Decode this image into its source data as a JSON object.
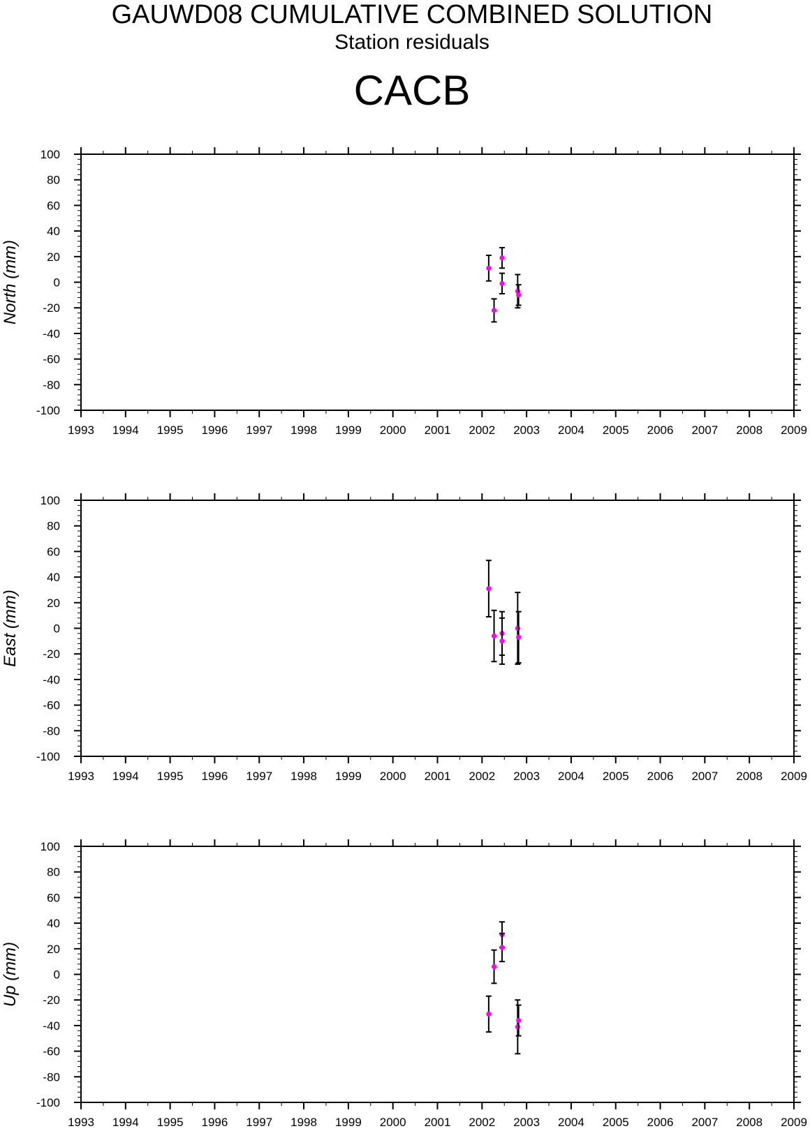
{
  "header": {
    "title": "GAUWD08 CUMULATIVE COMBINED SOLUTION",
    "subtitle": "Station residuals",
    "station": "CACB"
  },
  "colors": {
    "point": "#ff00ff",
    "errorbar": "#000000",
    "axis": "#000000"
  },
  "chart_data": [
    {
      "type": "scatter",
      "ylabel": "North (mm)",
      "xlim": [
        1993,
        2009
      ],
      "ylim": [
        -100,
        100
      ],
      "xticks": [
        1993,
        1994,
        1995,
        1996,
        1997,
        1998,
        1999,
        2000,
        2001,
        2002,
        2003,
        2004,
        2005,
        2006,
        2007,
        2008,
        2009
      ],
      "yticks": [
        100,
        80,
        60,
        40,
        20,
        0,
        -20,
        -40,
        -60,
        -80,
        -100
      ],
      "grid": false,
      "points": [
        {
          "x": 2002.15,
          "y": 11,
          "err": 10
        },
        {
          "x": 2002.27,
          "y": -22,
          "err": 9
        },
        {
          "x": 2002.45,
          "y": 19,
          "err": 8
        },
        {
          "x": 2002.45,
          "y": -1,
          "err": 8
        },
        {
          "x": 2002.8,
          "y": -7,
          "err": 13
        },
        {
          "x": 2002.82,
          "y": -10,
          "err": 8
        }
      ]
    },
    {
      "type": "scatter",
      "ylabel": "East (mm)",
      "xlim": [
        1993,
        2009
      ],
      "ylim": [
        -100,
        100
      ],
      "xticks": [
        1993,
        1994,
        1995,
        1996,
        1997,
        1998,
        1999,
        2000,
        2001,
        2002,
        2003,
        2004,
        2005,
        2006,
        2007,
        2008,
        2009
      ],
      "yticks": [
        100,
        80,
        60,
        40,
        20,
        0,
        -20,
        -40,
        -60,
        -80,
        -100
      ],
      "grid": false,
      "points": [
        {
          "x": 2002.15,
          "y": 31,
          "err": 22
        },
        {
          "x": 2002.27,
          "y": -6,
          "err": 20
        },
        {
          "x": 2002.45,
          "y": -4,
          "err": 17
        },
        {
          "x": 2002.45,
          "y": -10,
          "err": 18
        },
        {
          "x": 2002.8,
          "y": 0,
          "err": 28
        },
        {
          "x": 2002.82,
          "y": -7,
          "err": 20
        }
      ]
    },
    {
      "type": "scatter",
      "ylabel": "Up (mm)",
      "xlim": [
        1993,
        2009
      ],
      "ylim": [
        -100,
        100
      ],
      "xticks": [
        1993,
        1994,
        1995,
        1996,
        1997,
        1998,
        1999,
        2000,
        2001,
        2002,
        2003,
        2004,
        2005,
        2006,
        2007,
        2008,
        2009
      ],
      "yticks": [
        100,
        80,
        60,
        40,
        20,
        0,
        -20,
        -40,
        -60,
        -80,
        -100
      ],
      "grid": false,
      "points": [
        {
          "x": 2002.15,
          "y": -31,
          "err": 14
        },
        {
          "x": 2002.27,
          "y": 6,
          "err": 13
        },
        {
          "x": 2002.45,
          "y": 31,
          "err": 10
        },
        {
          "x": 2002.45,
          "y": 21,
          "err": 11
        },
        {
          "x": 2002.8,
          "y": -41,
          "err": 21
        },
        {
          "x": 2002.82,
          "y": -36,
          "err": 12
        }
      ]
    }
  ]
}
